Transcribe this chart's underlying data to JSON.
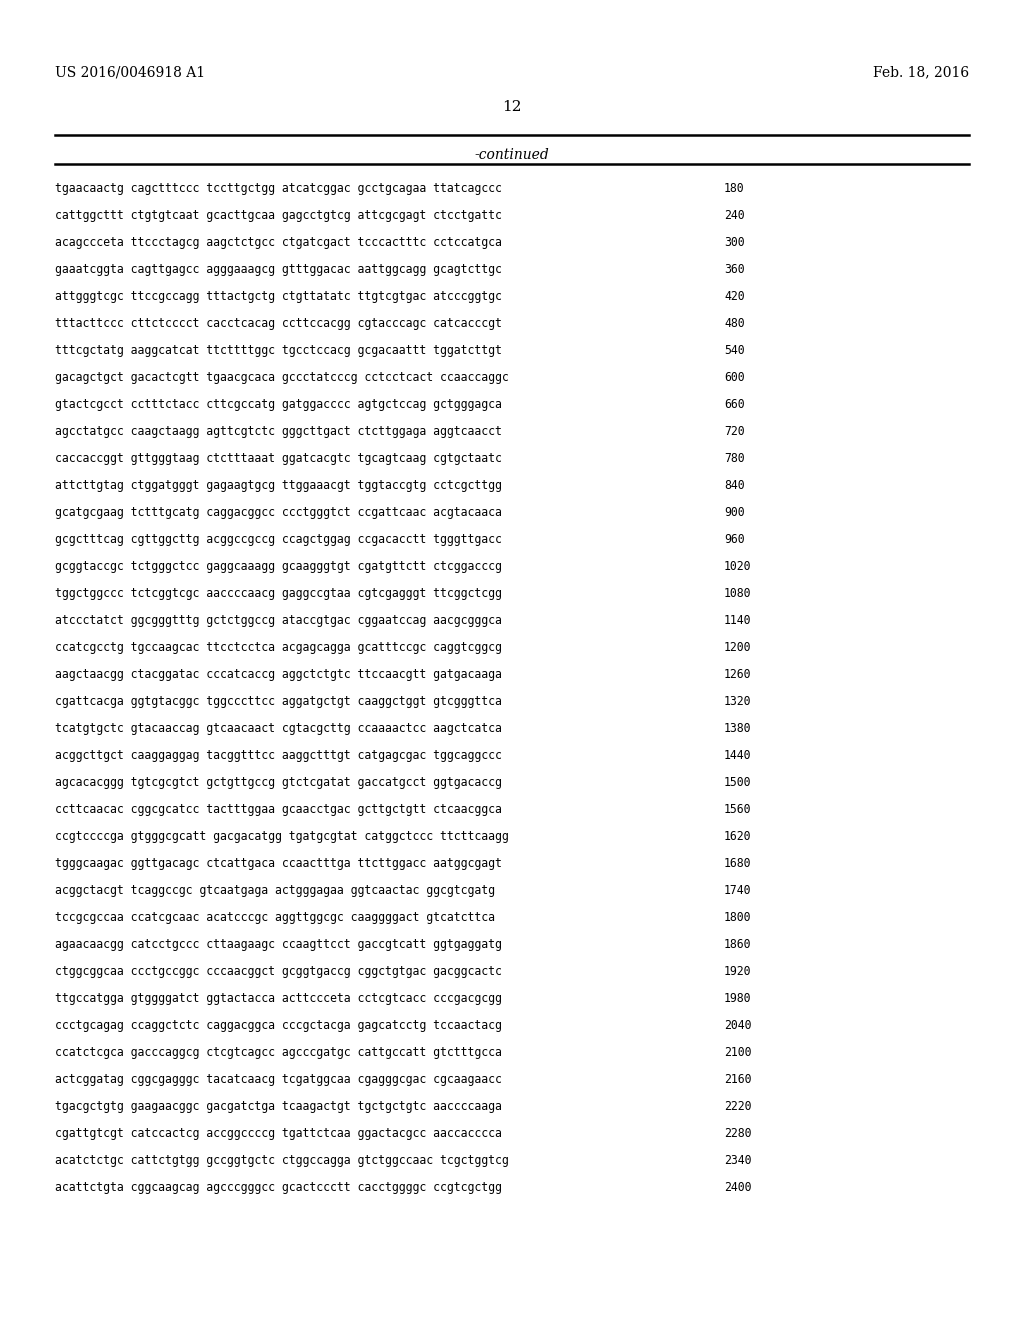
{
  "patent_number": "US 2016/0046918 A1",
  "date": "Feb. 18, 2016",
  "page_number": "12",
  "continued_label": "-continued",
  "background_color": "#ffffff",
  "text_color": "#000000",
  "sequence_lines": [
    [
      "tgaacaactg cagctttccc tccttgctgg atcatcggac gcctgcagaa ttatcagccc",
      "180"
    ],
    [
      "cattggcttt ctgtgtcaat gcacttgcaa gagcctgtcg attcgcgagt ctcctgattc",
      "240"
    ],
    [
      "acagccceta ttccctagcg aagctctgcc ctgatcgact tcccactttc cctccatgca",
      "300"
    ],
    [
      "gaaatcggta cagttgagcc agggaaagcg gtttggacac aattggcagg gcagtcttgc",
      "360"
    ],
    [
      "attgggtcgc ttccgccagg tttactgctg ctgttatatc ttgtcgtgac atcccggtgc",
      "420"
    ],
    [
      "tttacttccc cttctcccct cacctcacag ccttccacgg cgtacccagc catcacccgt",
      "480"
    ],
    [
      "tttcgctatg aaggcatcat ttcttttggc tgcctccacg gcgacaattt tggatcttgt",
      "540"
    ],
    [
      "gacagctgct gacactcgtt tgaacgcaca gccctatcccg cctcctcact ccaaccaggc",
      "600"
    ],
    [
      "gtactcgcct cctttctacc cttcgccatg gatggacccc agtgctccag gctgggagca",
      "660"
    ],
    [
      "agcctatgcc caagctaagg agttcgtctc gggcttgact ctcttggaga aggtcaacct",
      "720"
    ],
    [
      "caccaccggt gttgggtaag ctctttaaat ggatcacgtc tgcagtcaag cgtgctaatc",
      "780"
    ],
    [
      "attcttgtag ctggatgggt gagaagtgcg ttggaaacgt tggtaccgtg cctcgcttgg",
      "840"
    ],
    [
      "gcatgcgaag tctttgcatg caggacggcc ccctgggtct ccgattcaac acgtacaaca",
      "900"
    ],
    [
      "gcgctttcag cgttggcttg acggccgccg ccagctggag ccgacacctt tgggttgacc",
      "960"
    ],
    [
      "gcggtaccgc tctgggctcc gaggcaaagg gcaagggtgt cgatgttctt ctcggacccg",
      "1020"
    ],
    [
      "tggctggccc tctcggtcgc aaccccaacg gaggccgtaa cgtcgagggt ttcggctcgg",
      "1080"
    ],
    [
      "atccctatct ggcgggtttg gctctggccg ataccgtgac cggaatccag aacgcgggca",
      "1140"
    ],
    [
      "ccatcgcctg tgccaagcac ttcctcctca acgagcagga gcatttccgc caggtcggcg",
      "1200"
    ],
    [
      "aagctaacgg ctacggatac cccatcaccg aggctctgtc ttccaacgtt gatgacaaga",
      "1260"
    ],
    [
      "cgattcacga ggtgtacggc tggcccttcc aggatgctgt caaggctggt gtcgggttca",
      "1320"
    ],
    [
      "tcatgtgctc gtacaaccag gtcaacaact cgtacgcttg ccaaaactcc aagctcatca",
      "1380"
    ],
    [
      "acggcttgct caaggaggag tacggtttcc aaggctttgt catgagcgac tggcaggccc",
      "1440"
    ],
    [
      "agcacacggg tgtcgcgtct gctgttgccg gtctcgatat gaccatgcct ggtgacaccg",
      "1500"
    ],
    [
      "ccttcaacac cggcgcatcc tactttggaa gcaacctgac gcttgctgtt ctcaacggca",
      "1560"
    ],
    [
      "ccgtccccga gtgggcgcatt gacgacatgg tgatgcgtat catggctccc ttcttcaagg",
      "1620"
    ],
    [
      "tgggcaagac ggttgacagc ctcattgaca ccaactttga ttcttggacc aatggcgagt",
      "1680"
    ],
    [
      "acggctacgt tcaggccgc gtcaatgaga actgggagaa ggtcaactac ggcgtcgatg",
      "1740"
    ],
    [
      "tccgcgccaa ccatcgcaac acatcccgc aggttggcgc caaggggact gtcatcttca",
      "1800"
    ],
    [
      "agaacaacgg catcctgccc cttaagaagc ccaagttcct gaccgtcatt ggtgaggatg",
      "1860"
    ],
    [
      "ctggcggcaa ccctgccggc cccaacggct gcggtgaccg cggctgtgac gacggcactc",
      "1920"
    ],
    [
      "ttgccatgga gtggggatct ggtactacca acttccceta cctcgtcacc cccgacgcgg",
      "1980"
    ],
    [
      "ccctgcagag ccaggctctc caggacggca cccgctacga gagcatcctg tccaactacg",
      "2040"
    ],
    [
      "ccatctcgca gacccaggcg ctcgtcagcc agcccgatgc cattgccatt gtctttgcca",
      "2100"
    ],
    [
      "actcggatag cggcgagggc tacatcaacg tcgatggcaa cgagggcgac cgcaagaacc",
      "2160"
    ],
    [
      "tgacgctgtg gaagaacggc gacgatctga tcaagactgt tgctgctgtc aaccccaaga",
      "2220"
    ],
    [
      "cgattgtcgt catccactcg accggccccg tgattctcaa ggactacgcc aaccacccca",
      "2280"
    ],
    [
      "acatctctgc cattctgtgg gccggtgctc ctggccagga gtctggccaac tcgctggtcg",
      "2340"
    ],
    [
      "acattctgta cggcaagcag agcccgggcc gcactccctt cacctggggc ccgtcgctgg",
      "2400"
    ]
  ]
}
